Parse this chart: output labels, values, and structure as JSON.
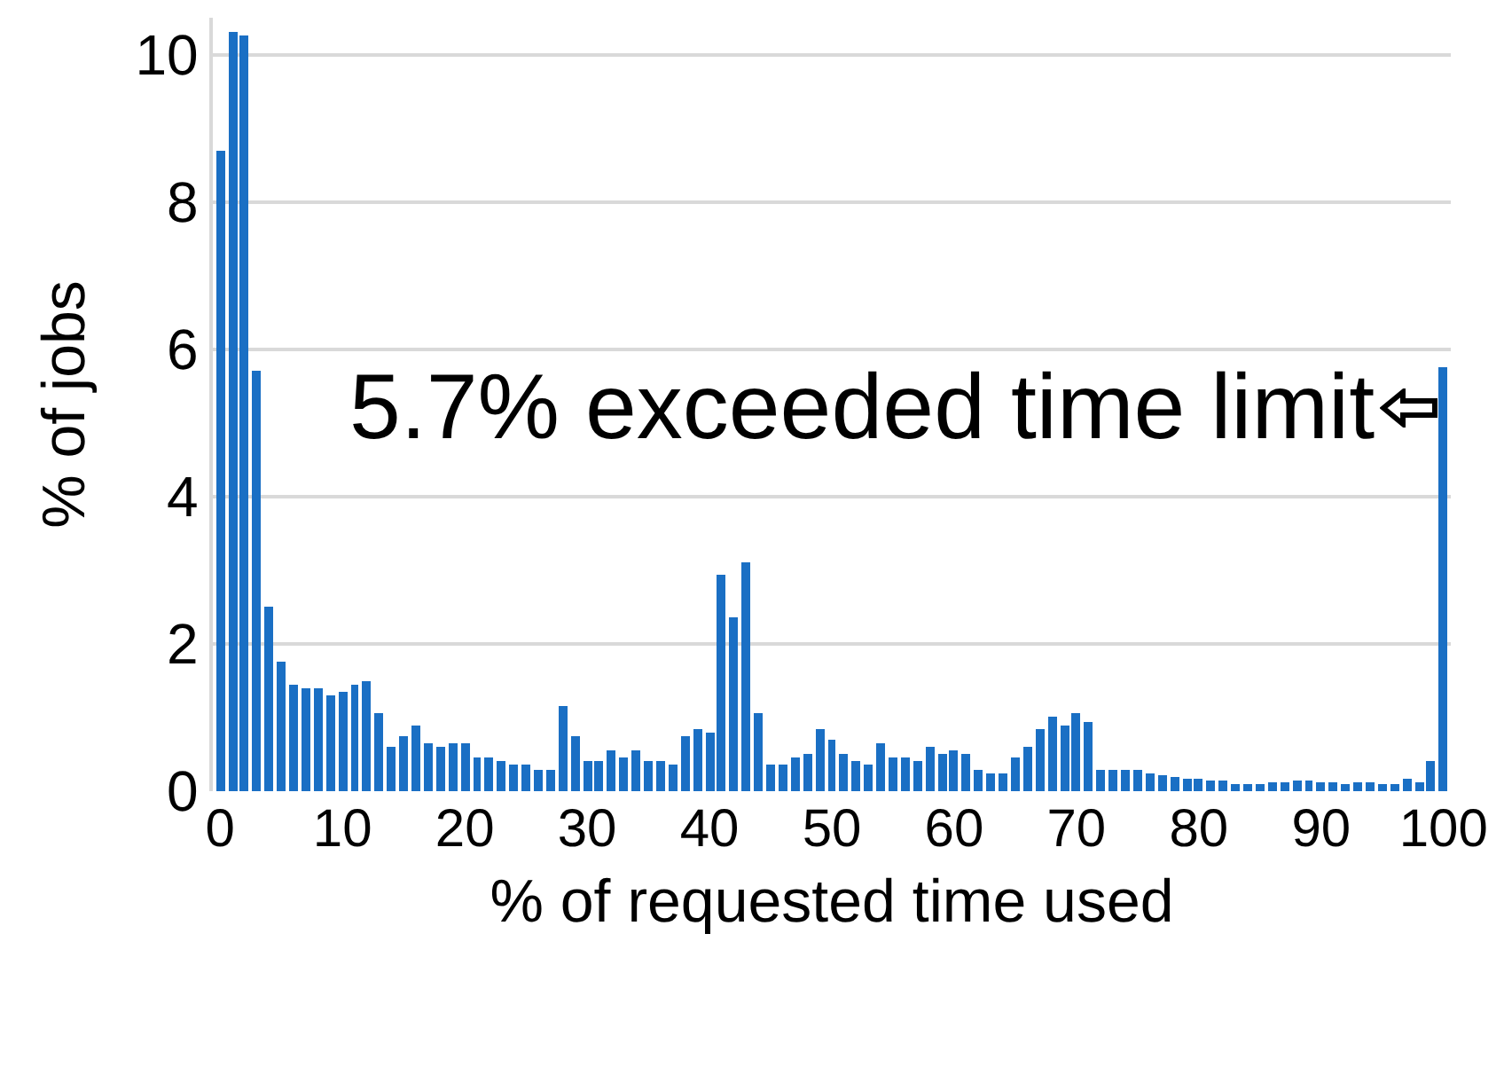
{
  "chart_data": {
    "type": "bar",
    "xlabel": "% of requested time used",
    "ylabel": "% of jobs",
    "x": [
      0,
      1,
      2,
      3,
      4,
      5,
      6,
      7,
      8,
      9,
      10,
      11,
      12,
      13,
      14,
      15,
      16,
      17,
      18,
      19,
      20,
      21,
      22,
      23,
      24,
      25,
      26,
      27,
      28,
      29,
      30,
      31,
      32,
      33,
      34,
      35,
      36,
      37,
      38,
      39,
      40,
      41,
      42,
      43,
      44,
      45,
      46,
      47,
      48,
      49,
      50,
      51,
      52,
      53,
      54,
      55,
      56,
      57,
      58,
      59,
      60,
      61,
      62,
      63,
      64,
      65,
      66,
      67,
      68,
      69,
      70,
      71,
      72,
      73,
      74,
      75,
      76,
      77,
      78,
      79,
      80,
      81,
      82,
      83,
      84,
      85,
      86,
      87,
      88,
      89,
      90,
      91,
      92,
      93,
      94,
      95,
      96,
      97,
      98,
      99,
      100
    ],
    "values": [
      8.7,
      10.3,
      10.25,
      5.7,
      2.5,
      1.75,
      1.45,
      1.4,
      1.4,
      1.3,
      1.35,
      1.45,
      1.5,
      1.05,
      0.6,
      0.75,
      0.9,
      0.65,
      0.6,
      0.65,
      0.65,
      0.45,
      0.45,
      0.4,
      0.35,
      0.35,
      0.3,
      0.3,
      1.15,
      0.75,
      0.4,
      0.4,
      0.55,
      0.45,
      0.55,
      0.4,
      0.4,
      0.35,
      0.75,
      0.85,
      0.8,
      2.95,
      2.35,
      3.1,
      1.05,
      0.35,
      0.35,
      0.45,
      0.5,
      0.85,
      0.7,
      0.5,
      0.4,
      0.35,
      0.65,
      0.45,
      0.45,
      0.4,
      0.6,
      0.5,
      0.55,
      0.5,
      0.3,
      0.25,
      0.25,
      0.45,
      0.6,
      0.85,
      1.0,
      0.9,
      1.05,
      0.95,
      0.3,
      0.3,
      0.3,
      0.28,
      0.25,
      0.22,
      0.2,
      0.18,
      0.18,
      0.15,
      0.15,
      0.1,
      0.1,
      0.1,
      0.12,
      0.12,
      0.15,
      0.15,
      0.12,
      0.12,
      0.1,
      0.12,
      0.12,
      0.1,
      0.1,
      0.18,
      0.12,
      0.4,
      5.75
    ],
    "color": "#1a6fc4",
    "xlim": [
      -0.6,
      100.6
    ],
    "xticks": [
      0,
      10,
      20,
      30,
      40,
      50,
      60,
      70,
      80,
      90,
      100
    ],
    "ylim": [
      0,
      10.5
    ],
    "yticks": [
      0,
      2,
      4,
      6,
      8,
      10
    ],
    "grid": "y",
    "annotations": [
      {
        "text": "5.7% exceeded time limit",
        "x": 100,
        "y": 5.2
      }
    ]
  }
}
